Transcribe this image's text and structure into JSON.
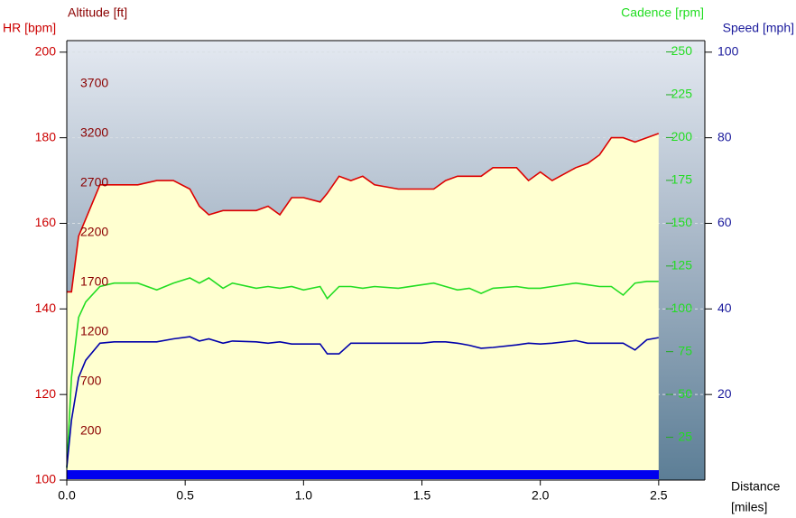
{
  "chart_data": {
    "type": "line",
    "x_label": "Distance",
    "x_unit": "[miles]",
    "xlim": [
      0,
      2.695
    ],
    "xticks": [
      {
        "value": 0,
        "label": "0.0"
      },
      0.5,
      {
        "value": 1,
        "label": "1.0"
      },
      1.5,
      {
        "value": 2,
        "label": "2.0"
      },
      2.5
    ],
    "axes": [
      {
        "label": "HR [bpm]",
        "lim": [
          100,
          202.7
        ],
        "ticks": [
          100,
          120,
          140,
          160,
          180,
          200
        ],
        "color": "#cc0000"
      },
      {
        "label": "Altitude [ft]",
        "lim": [
          -291,
          4136
        ],
        "ticks": [
          200,
          700,
          1200,
          1700,
          2200,
          2700,
          3200,
          3700
        ],
        "color": "#8b0000"
      },
      {
        "label": "Cadence [rpm]",
        "lim": [
          0,
          256.6
        ],
        "ticks": [
          25,
          50,
          75,
          100,
          125,
          150,
          175,
          200,
          225,
          250
        ],
        "color": "#22dd22"
      },
      {
        "label": "Speed [mph]",
        "lim": [
          0,
          102.7
        ],
        "ticks": [
          20,
          40,
          60,
          80,
          100
        ],
        "color": "#1a1a9c"
      }
    ],
    "grid": true,
    "grid_axis": 3,
    "x": [
      0,
      0.02,
      0.05,
      0.08,
      0.14,
      0.2,
      0.3,
      0.38,
      0.45,
      0.52,
      0.56,
      0.6,
      0.66,
      0.7,
      0.8,
      0.85,
      0.9,
      0.95,
      1.0,
      1.07,
      1.1,
      1.15,
      1.2,
      1.25,
      1.3,
      1.4,
      1.5,
      1.55,
      1.6,
      1.65,
      1.7,
      1.75,
      1.8,
      1.9,
      1.95,
      2.0,
      2.05,
      2.15,
      2.2,
      2.25,
      2.3,
      2.35,
      2.4,
      2.45,
      2.5
    ],
    "series": [
      {
        "name": "HR",
        "axis": 0,
        "color": "#dd0000",
        "fill": "#ffffd0",
        "values": [
          144,
          144,
          157,
          161,
          169,
          169,
          169,
          170,
          170,
          168,
          164,
          162,
          163,
          163,
          163,
          164,
          162,
          166,
          166,
          165,
          167,
          171,
          170,
          171,
          169,
          168,
          168,
          168,
          170,
          171,
          171,
          171,
          173,
          173,
          170,
          172,
          170,
          173,
          174,
          176,
          180,
          180,
          179,
          180,
          181
        ]
      },
      {
        "name": "Cadence",
        "axis": 2,
        "color": "#22dd22",
        "values": [
          7,
          60,
          95,
          104,
          113,
          115,
          115,
          111,
          115,
          118,
          115,
          118,
          112,
          115,
          112,
          113,
          112,
          113,
          111,
          113,
          106,
          113,
          113,
          112,
          113,
          112,
          114,
          115,
          113,
          111,
          112,
          109,
          112,
          113,
          112,
          112,
          113,
          115,
          114,
          113,
          113,
          108,
          115,
          116,
          116
        ]
      },
      {
        "name": "Speed",
        "axis": 3,
        "color": "#0000aa",
        "values": [
          3,
          14,
          24,
          28,
          32,
          32.3,
          32.3,
          32.3,
          33,
          33.5,
          32.5,
          33,
          32,
          32.5,
          32.3,
          32,
          32.3,
          31.8,
          31.8,
          31.8,
          29.5,
          29.5,
          32,
          32,
          32,
          32,
          32,
          32.3,
          32.3,
          32,
          31.5,
          30.8,
          31,
          31.6,
          32,
          31.8,
          32,
          32.6,
          32,
          32,
          32,
          32,
          30.4,
          32.8,
          33.3
        ]
      }
    ]
  }
}
